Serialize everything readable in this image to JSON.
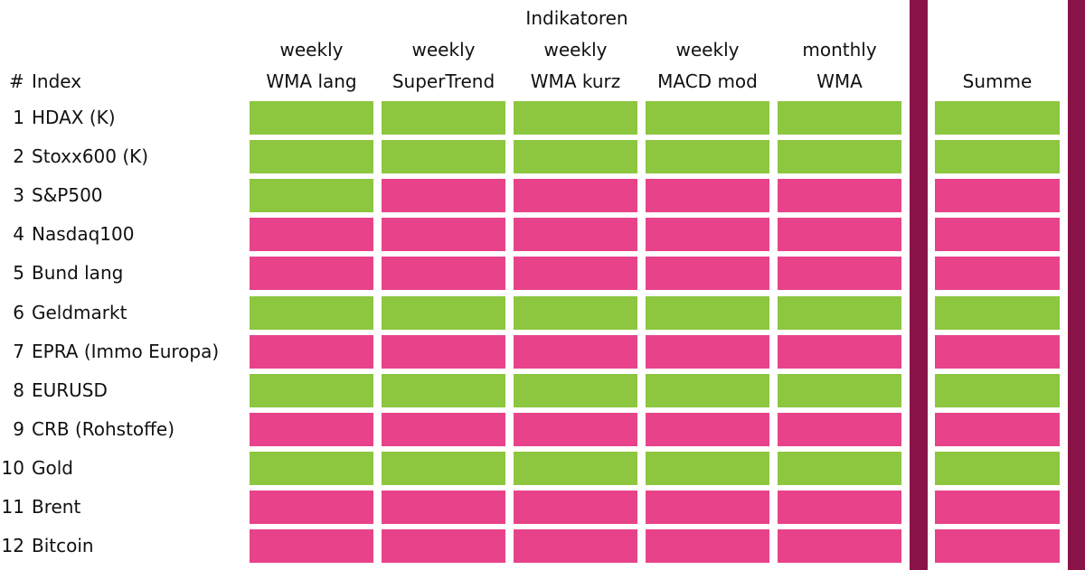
{
  "header": {
    "group": "Indikatoren",
    "number": "#",
    "index": "Index",
    "columns": [
      [
        "weekly",
        "WMA lang"
      ],
      [
        "weekly",
        "SuperTrend"
      ],
      [
        "weekly",
        "WMA kurz"
      ],
      [
        "weekly",
        "MACD mod"
      ],
      [
        "monthly",
        "WMA"
      ]
    ],
    "summary": "Summe"
  },
  "rows": [
    {
      "number": 1,
      "name": "HDAX (K)",
      "signals": [
        "#8dc63f",
        "#8dc63f",
        "#8dc63f",
        "#8dc63f",
        "#8dc63f"
      ],
      "summary": "#8dc63f"
    },
    {
      "number": 2,
      "name": "Stoxx600 (K)",
      "signals": [
        "#8dc63f",
        "#8dc63f",
        "#8dc63f",
        "#8dc63f",
        "#8dc63f"
      ],
      "summary": "#8dc63f"
    },
    {
      "number": 3,
      "name": "S&P500",
      "signals": [
        "#8dc63f",
        "#e8438a",
        "#e8438a",
        "#e8438a",
        "#e8438a"
      ],
      "summary": "#e8438a"
    },
    {
      "number": 4,
      "name": "Nasdaq100",
      "signals": [
        "#e8438a",
        "#e8438a",
        "#e8438a",
        "#e8438a",
        "#e8438a"
      ],
      "summary": "#e8438a"
    },
    {
      "number": 5,
      "name": "Bund lang",
      "signals": [
        "#e8438a",
        "#e8438a",
        "#e8438a",
        "#e8438a",
        "#e8438a"
      ],
      "summary": "#e8438a"
    },
    {
      "number": 6,
      "name": "Geldmarkt",
      "signals": [
        "#8dc63f",
        "#8dc63f",
        "#8dc63f",
        "#8dc63f",
        "#8dc63f"
      ],
      "summary": "#8dc63f"
    },
    {
      "number": 7,
      "name": "EPRA (Immo Europa)",
      "signals": [
        "#e8438a",
        "#e8438a",
        "#e8438a",
        "#e8438a",
        "#e8438a"
      ],
      "summary": "#e8438a"
    },
    {
      "number": 8,
      "name": "EURUSD",
      "signals": [
        "#8dc63f",
        "#8dc63f",
        "#8dc63f",
        "#8dc63f",
        "#8dc63f"
      ],
      "summary": "#8dc63f"
    },
    {
      "number": 9,
      "name": "CRB (Rohstoffe)",
      "signals": [
        "#e8438a",
        "#e8438a",
        "#e8438a",
        "#e8438a",
        "#e8438a"
      ],
      "summary": "#e8438a"
    },
    {
      "number": 10,
      "name": "Gold",
      "signals": [
        "#8dc63f",
        "#8dc63f",
        "#8dc63f",
        "#8dc63f",
        "#8dc63f"
      ],
      "summary": "#8dc63f"
    },
    {
      "number": 11,
      "name": "Brent",
      "signals": [
        "#e8438a",
        "#e8438a",
        "#e8438a",
        "#e8438a",
        "#e8438a"
      ],
      "summary": "#e8438a"
    },
    {
      "number": 12,
      "name": "Bitcoin",
      "signals": [
        "#e8438a",
        "#e8438a",
        "#e8438a",
        "#e8438a",
        "#e8438a"
      ],
      "summary": "#e8438a"
    }
  ]
}
